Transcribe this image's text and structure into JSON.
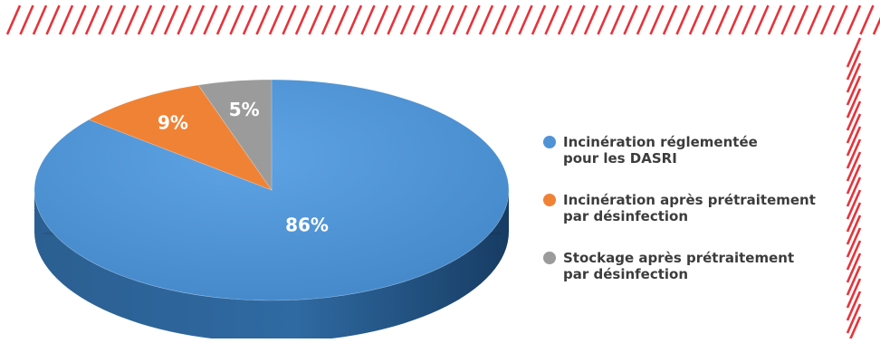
{
  "colors": {
    "stripe": "#e8323a",
    "blue": "#4f93d6",
    "blue_side": "#2a5c8c",
    "orange": "#f08235",
    "orange_side": "#b85a1c",
    "gray": "#9b9b9b",
    "gray_side": "#6d6d6d",
    "label_text": "#ffffff",
    "legend_text": "#3c3c3c"
  },
  "chart_data": {
    "type": "pie",
    "title": "",
    "style": "3d",
    "legend_position": "right",
    "slices": [
      {
        "label_lines": [
          "Incinération réglementée",
          "pour les DASRI"
        ],
        "value": 86,
        "display": "86%",
        "color": "#4f93d6",
        "icon": "blue-dot"
      },
      {
        "label_lines": [
          "Incinération après prétraitement",
          "par désinfection"
        ],
        "value": 9,
        "display": "9%",
        "color": "#f08235",
        "icon": "orange-dot"
      },
      {
        "label_lines": [
          "Stockage après prétraitement",
          "par désinfection"
        ],
        "value": 5,
        "display": "5%",
        "color": "#9b9b9b",
        "icon": "gray-dot"
      }
    ]
  }
}
